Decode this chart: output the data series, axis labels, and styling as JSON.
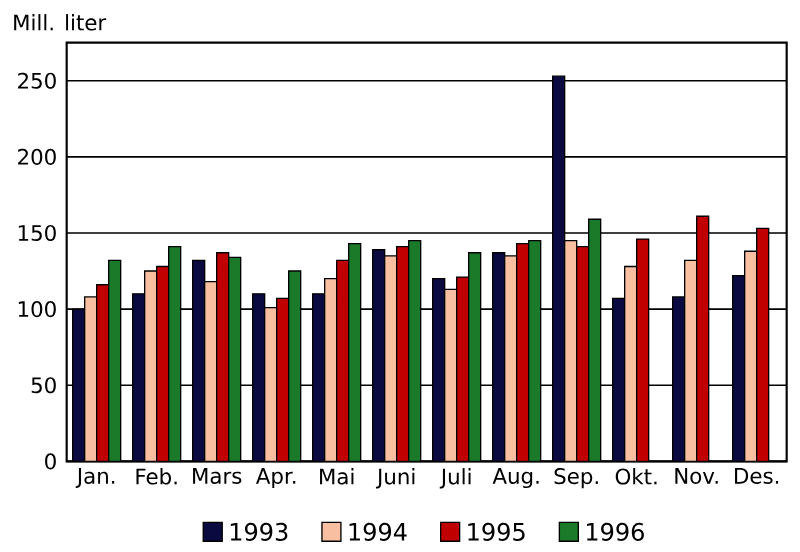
{
  "chart_data": {
    "type": "bar",
    "ylabel": "Mill. liter",
    "categories": [
      "Jan.",
      "Feb.",
      "Mars",
      "Apr.",
      "Mai",
      "Juni",
      "Juli",
      "Aug.",
      "Sep.",
      "Okt.",
      "Nov.",
      "Des."
    ],
    "series": [
      {
        "name": "1993",
        "color": "#0a0a40",
        "values": [
          100,
          110,
          132,
          110,
          110,
          139,
          120,
          137,
          253,
          107,
          108,
          122
        ]
      },
      {
        "name": "1994",
        "color": "#f8c0a0",
        "values": [
          108,
          125,
          118,
          101,
          120,
          135,
          113,
          135,
          145,
          128,
          132,
          138
        ]
      },
      {
        "name": "1995",
        "color": "#c00000",
        "values": [
          116,
          128,
          137,
          107,
          132,
          141,
          121,
          143,
          141,
          146,
          161,
          153
        ]
      },
      {
        "name": "1996",
        "color": "#1a7a2a",
        "values": [
          132,
          141,
          134,
          125,
          143,
          145,
          137,
          145,
          159,
          null,
          null,
          null
        ]
      }
    ],
    "ylim": [
      0,
      275
    ],
    "yticks": [
      0,
      50,
      100,
      150,
      200,
      250
    ],
    "grid": "y",
    "legend": "bottom"
  }
}
